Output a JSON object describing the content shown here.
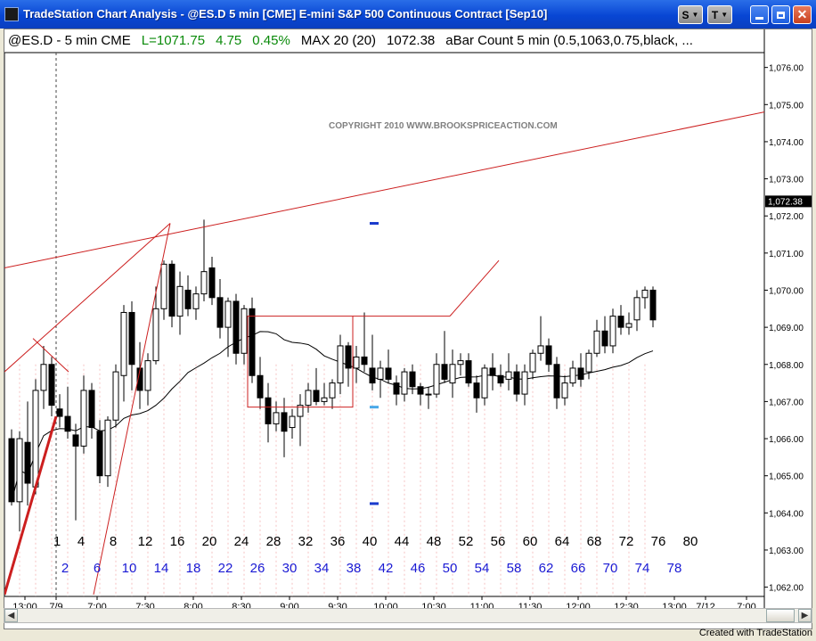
{
  "window": {
    "title": "TradeStation Chart Analysis - @ES.D 5 min [CME] E-mini S&P 500 Continuous Contract [Sep10]"
  },
  "titlebar_buttons": {
    "s_label": "S",
    "t_label": "T",
    "minimize_icon": "minimize-icon",
    "maximize_icon": "maximize-icon",
    "close_icon": "close-icon"
  },
  "infobar": {
    "symbol": "@ES.D - 5 min  CME",
    "last": "L=1071.75",
    "change": "4.75",
    "pct": "0.45%",
    "max": "MAX 20 (20)",
    "max_value": "1072.38",
    "abar": "aBar Count 5 min (0.5,1063,0.75,black, ..."
  },
  "copyright": "COPYRIGHT 2010  WWW.BROOKSPRICEACTION.COM",
  "footer": "Created with TradeStation",
  "colors": {
    "up_candle": "#ffffff",
    "down_candle": "#000000",
    "trendline": "#cc1f1f",
    "bar_count_odd": "#000000",
    "bar_count_even": "#1a1ad4",
    "positive": "#0a8a0a",
    "marker": "#1a3acc"
  },
  "chart_data": {
    "type": "candlestick",
    "y_axis": {
      "min": 1061.75,
      "max": 1076.4,
      "ticks": [
        "1,062.00",
        "1,063.00",
        "1,064.00",
        "1,065.00",
        "1,066.00",
        "1,067.00",
        "1,068.00",
        "1,069.00",
        "1,070.00",
        "1,071.00",
        "1,072.00",
        "1,073.00",
        "1,074.00",
        "1,075.00",
        "1,076.00"
      ],
      "last_price_label": "1,072.38"
    },
    "x_axis": {
      "labels": [
        "13:00",
        "7/9",
        "7:00",
        "7:30",
        "8:00",
        "8:30",
        "9:00",
        "9:30",
        "10:00",
        "10:30",
        "11:00",
        "11:30",
        "12:00",
        "12:30",
        "13:00",
        "7/12",
        "7:00"
      ]
    },
    "bar_numbers": {
      "odd": [
        "1",
        "4",
        "8",
        "12",
        "16",
        "20",
        "24",
        "28",
        "32",
        "36",
        "40",
        "44",
        "48",
        "52",
        "56",
        "60",
        "64",
        "68",
        "72",
        "76",
        "80"
      ],
      "even": [
        "2",
        "6",
        "10",
        "14",
        "18",
        "22",
        "26",
        "30",
        "34",
        "38",
        "42",
        "46",
        "50",
        "54",
        "58",
        "62",
        "66",
        "70",
        "74",
        "78"
      ]
    },
    "candles": [
      [
        1066.0,
        1066.25,
        1064.2,
        1064.3
      ],
      [
        1064.3,
        1066.2,
        1063.5,
        1066.0
      ],
      [
        1065.9,
        1067.0,
        1064.2,
        1064.8
      ],
      [
        1064.7,
        1067.6,
        1064.5,
        1067.3
      ],
      [
        1067.3,
        1068.5,
        1066.8,
        1068.0
      ],
      [
        1068.0,
        1068.2,
        1066.6,
        1066.9
      ],
      [
        1066.8,
        1067.2,
        1066.3,
        1066.6
      ],
      [
        1066.6,
        1067.4,
        1066.0,
        1066.2
      ],
      [
        1066.1,
        1066.4,
        1063.8,
        1065.8
      ],
      [
        1065.8,
        1067.7,
        1065.6,
        1067.3
      ],
      [
        1067.3,
        1067.5,
        1066.0,
        1066.3
      ],
      [
        1066.2,
        1066.5,
        1064.8,
        1065.0
      ],
      [
        1065.0,
        1066.6,
        1064.7,
        1066.5
      ],
      [
        1066.5,
        1068.0,
        1066.3,
        1067.8
      ],
      [
        1067.7,
        1069.6,
        1067.0,
        1069.4
      ],
      [
        1069.4,
        1069.7,
        1067.3,
        1068.0
      ],
      [
        1067.9,
        1068.6,
        1066.8,
        1067.3
      ],
      [
        1067.3,
        1068.3,
        1066.9,
        1068.1
      ],
      [
        1068.1,
        1070.1,
        1068.0,
        1069.5
      ],
      [
        1069.5,
        1070.8,
        1069.2,
        1070.7
      ],
      [
        1070.7,
        1070.8,
        1069.0,
        1069.3
      ],
      [
        1069.3,
        1070.5,
        1068.8,
        1070.1
      ],
      [
        1070.0,
        1070.4,
        1069.3,
        1069.5
      ],
      [
        1069.5,
        1070.1,
        1069.2,
        1069.9
      ],
      [
        1069.9,
        1071.9,
        1069.7,
        1070.5
      ],
      [
        1070.6,
        1070.9,
        1069.6,
        1069.8
      ],
      [
        1069.8,
        1070.3,
        1068.7,
        1069.0
      ],
      [
        1069.0,
        1069.8,
        1068.2,
        1069.7
      ],
      [
        1069.7,
        1069.9,
        1068.0,
        1068.3
      ],
      [
        1068.3,
        1069.6,
        1068.0,
        1069.5
      ],
      [
        1069.5,
        1069.8,
        1067.5,
        1067.7
      ],
      [
        1067.7,
        1068.2,
        1066.8,
        1067.1
      ],
      [
        1067.1,
        1067.5,
        1065.9,
        1066.4
      ],
      [
        1066.4,
        1067.0,
        1066.2,
        1066.7
      ],
      [
        1066.7,
        1067.1,
        1065.5,
        1066.2
      ],
      [
        1066.3,
        1066.8,
        1066.0,
        1066.6
      ],
      [
        1066.6,
        1067.2,
        1065.8,
        1066.9
      ],
      [
        1066.9,
        1067.5,
        1066.7,
        1067.3
      ],
      [
        1067.3,
        1067.9,
        1066.9,
        1067.0
      ],
      [
        1067.0,
        1067.5,
        1066.9,
        1067.1
      ],
      [
        1067.1,
        1067.6,
        1066.8,
        1067.5
      ],
      [
        1067.5,
        1068.8,
        1067.2,
        1068.5
      ],
      [
        1068.5,
        1068.6,
        1067.4,
        1067.9
      ],
      [
        1067.9,
        1068.5,
        1067.5,
        1068.2
      ],
      [
        1068.2,
        1069.4,
        1067.8,
        1068.0
      ],
      [
        1067.9,
        1068.8,
        1067.3,
        1067.5
      ],
      [
        1067.6,
        1068.1,
        1067.1,
        1067.9
      ],
      [
        1067.9,
        1068.4,
        1067.5,
        1067.6
      ],
      [
        1067.5,
        1067.7,
        1066.9,
        1067.2
      ],
      [
        1067.2,
        1067.9,
        1067.0,
        1067.8
      ],
      [
        1067.8,
        1068.0,
        1067.2,
        1067.4
      ],
      [
        1067.4,
        1067.5,
        1066.9,
        1067.2
      ],
      [
        1067.2,
        1067.4,
        1066.8,
        1067.2
      ],
      [
        1067.2,
        1068.3,
        1067.1,
        1068.0
      ],
      [
        1068.0,
        1068.9,
        1067.5,
        1067.6
      ],
      [
        1067.5,
        1068.4,
        1067.1,
        1068.0
      ],
      [
        1068.0,
        1068.3,
        1067.7,
        1068.1
      ],
      [
        1068.1,
        1068.3,
        1067.4,
        1067.5
      ],
      [
        1067.5,
        1067.7,
        1066.7,
        1067.1
      ],
      [
        1067.1,
        1068.0,
        1066.9,
        1067.9
      ],
      [
        1067.9,
        1068.3,
        1067.3,
        1067.7
      ],
      [
        1067.7,
        1068.0,
        1067.4,
        1067.5
      ],
      [
        1067.6,
        1068.3,
        1067.3,
        1067.8
      ],
      [
        1067.8,
        1068.0,
        1067.0,
        1067.2
      ],
      [
        1067.2,
        1068.0,
        1066.9,
        1067.8
      ],
      [
        1067.8,
        1068.4,
        1067.6,
        1068.3
      ],
      [
        1068.3,
        1069.3,
        1068.1,
        1068.5
      ],
      [
        1068.5,
        1068.7,
        1067.8,
        1068.0
      ],
      [
        1068.0,
        1068.2,
        1066.8,
        1067.1
      ],
      [
        1067.1,
        1067.7,
        1066.9,
        1067.5
      ],
      [
        1067.5,
        1068.1,
        1067.4,
        1067.9
      ],
      [
        1067.9,
        1068.3,
        1067.4,
        1067.6
      ],
      [
        1067.8,
        1068.4,
        1067.6,
        1068.3
      ],
      [
        1068.3,
        1069.2,
        1068.2,
        1068.9
      ],
      [
        1068.9,
        1069.3,
        1068.3,
        1068.5
      ],
      [
        1068.5,
        1069.5,
        1068.3,
        1069.3
      ],
      [
        1069.3,
        1069.6,
        1068.8,
        1069.0
      ],
      [
        1069.0,
        1069.4,
        1068.8,
        1069.1
      ],
      [
        1069.2,
        1070.0,
        1068.9,
        1069.8
      ],
      [
        1069.8,
        1070.1,
        1069.5,
        1070.0
      ],
      [
        1070.0,
        1070.1,
        1069.0,
        1069.2
      ]
    ]
  }
}
